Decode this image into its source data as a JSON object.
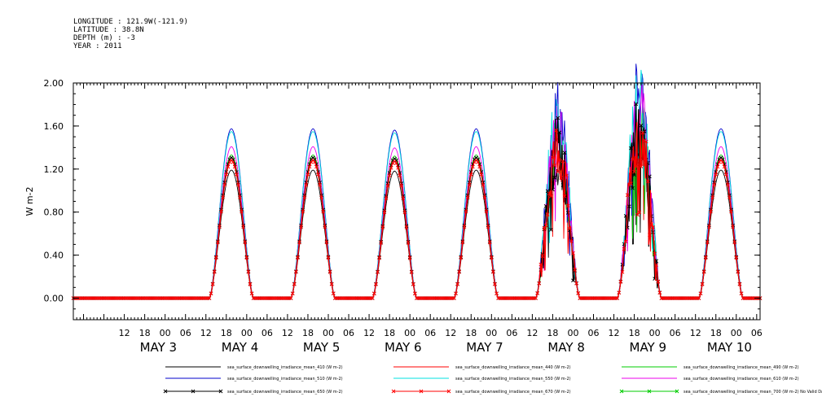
{
  "header": {
    "longitude": "LONGITUDE : 121.9W(-121.9)",
    "latitude": "LATITUDE : 38.8N",
    "depth": "DEPTH (m) : -3",
    "year": "YEAR : 2011"
  },
  "chart_data": {
    "type": "line",
    "ylabel": "W m-2",
    "ylim": [
      -0.2,
      2.0
    ],
    "xlim_hours": [
      -27,
      175
    ],
    "yticks": [
      {
        "value": 0.0,
        "label": "0.00"
      },
      {
        "value": 0.4,
        "label": "0.40"
      },
      {
        "value": 0.8,
        "label": "0.80"
      },
      {
        "value": 1.2,
        "label": "1.20"
      },
      {
        "value": 1.6,
        "label": "1.60"
      },
      {
        "value": 2.0,
        "label": "2.00"
      }
    ],
    "xtick_hours": [
      "12",
      "18",
      "00",
      "06",
      "12",
      "18",
      "00",
      "06",
      "12",
      "18",
      "00",
      "06",
      "12",
      "18",
      "00",
      "06",
      "12",
      "18",
      "00",
      "06",
      "12",
      "18",
      "00",
      "06",
      "12",
      "18",
      "00",
      "06",
      "12",
      "18",
      "00",
      "06"
    ],
    "date_labels": [
      "MAY 3",
      "MAY 4",
      "MAY 5",
      "MAY 6",
      "MAY 7",
      "MAY 8",
      "MAY 9",
      "MAY 10"
    ],
    "peak_hour_offset": 19.5,
    "daylight_half_width_hours": 6.5,
    "days": [
      {
        "label": "MAY 3",
        "peak_510": 1.58,
        "peak_670": 1.28,
        "noisy": false
      },
      {
        "label": "MAY 4",
        "peak_510": 1.58,
        "peak_670": 1.28,
        "noisy": false
      },
      {
        "label": "MAY 5",
        "peak_510": 1.54,
        "peak_670": 1.27,
        "noisy": false
      },
      {
        "label": "MAY 6",
        "peak_510": 1.58,
        "peak_670": 1.28,
        "noisy": false
      },
      {
        "label": "MAY 7",
        "peak_510": 1.66,
        "peak_670": 1.35,
        "noisy": true
      },
      {
        "label": "MAY 8",
        "peak_510": 1.88,
        "peak_670": 1.5,
        "noisy": true
      },
      {
        "label": "MAY 9",
        "peak_510": 1.57,
        "peak_670": 1.28,
        "noisy": false
      }
    ],
    "series": [
      {
        "name": "sea_surface_downwelling_irradiance_mean_410 (W m-2)",
        "color": "#000000",
        "scale": 0.93,
        "marker": false
      },
      {
        "name": "sea_surface_downwelling_irradiance_mean_440 (W m-2)",
        "color": "#ff0000",
        "scale": 1.0,
        "marker": false
      },
      {
        "name": "sea_surface_downwelling_irradiance_mean_490 (W m-2)",
        "color": "#00cc00",
        "scale": 1.04,
        "marker": false
      },
      {
        "name": "sea_surface_downwelling_irradiance_mean_510 (W m-2)",
        "color": "#0000cc",
        "scale": 1.23,
        "marker": false
      },
      {
        "name": "sea_surface_downwelling_irradiance_mean_550 (W m-2)",
        "color": "#00e0e0",
        "scale": 1.21,
        "marker": false
      },
      {
        "name": "sea_surface_downwelling_irradiance_mean_610 (W m-2)",
        "color": "#ee00ee",
        "scale": 1.1,
        "marker": false
      },
      {
        "name": "sea_surface_downwelling_irradiance_mean_650 (W m-2)",
        "color": "#000000",
        "scale": 1.02,
        "marker": true
      },
      {
        "name": "sea_surface_downwelling_irradiance_mean_670 (W m-2)",
        "color": "#ff0000",
        "scale": 1.0,
        "marker": true
      },
      {
        "name": "sea_surface_downwelling_irradiance_mean_700 (W m-2) No Valid Data",
        "color": "#00cc00",
        "scale": 0,
        "marker": true
      }
    ]
  }
}
